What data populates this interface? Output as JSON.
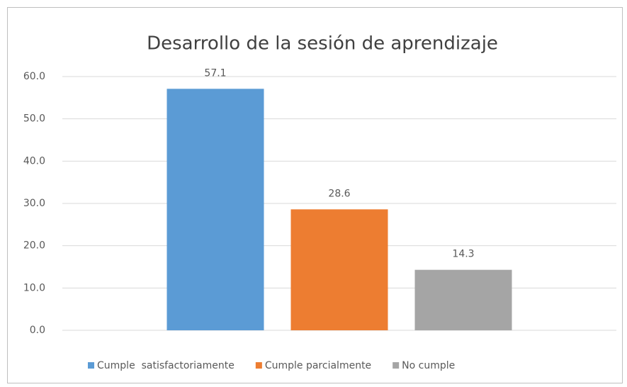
{
  "chart_data": {
    "type": "bar",
    "title": "Desarrollo de la sesión de aprendizaje",
    "categories": [
      null
    ],
    "series": [
      {
        "name": "Cumple  satisfactoriamente",
        "color": "#5b9bd5",
        "values": [
          57.1
        ]
      },
      {
        "name": "Cumple parcialmente",
        "color": "#ed7d31",
        "values": [
          28.6
        ]
      },
      {
        "name": "No cumple",
        "color": "#a5a5a5",
        "values": [
          14.3
        ]
      }
    ],
    "ylim": [
      0,
      60
    ],
    "yticks": [
      {
        "value": 0,
        "label": "0.0"
      },
      {
        "value": 10,
        "label": "10.0"
      },
      {
        "value": 20,
        "label": "20.0"
      },
      {
        "value": 30,
        "label": "30.0"
      },
      {
        "value": 40,
        "label": "40.0"
      },
      {
        "value": 50,
        "label": "50.0"
      },
      {
        "value": 60,
        "label": "60.0"
      }
    ],
    "grid": true,
    "legend": "bottom"
  }
}
